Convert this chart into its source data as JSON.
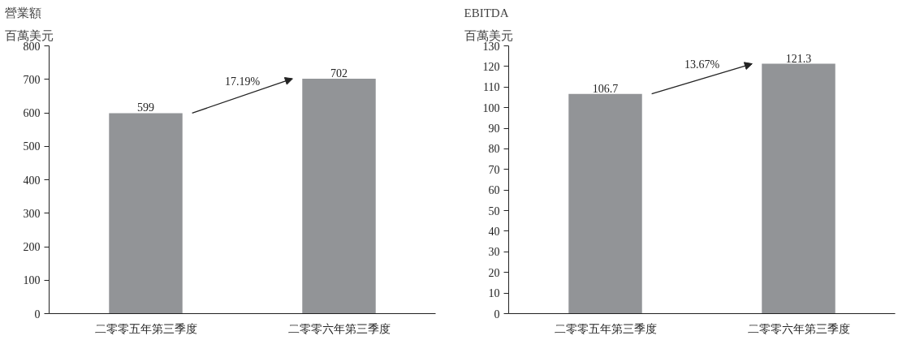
{
  "chart_data": [
    {
      "type": "bar",
      "title": "營業額",
      "ylabel": "百萬美元",
      "categories": [
        "二零零五年第三季度",
        "二零零六年第三季度"
      ],
      "values": [
        599,
        702
      ],
      "color": "#929497",
      "ylim": [
        0,
        800
      ],
      "yticks": [
        0,
        100,
        200,
        300,
        400,
        500,
        600,
        700,
        800
      ],
      "data_labels": true,
      "grid": false,
      "annotations": [
        "17.19%"
      ]
    },
    {
      "type": "bar",
      "title": "EBITDA",
      "ylabel": "百萬美元",
      "categories": [
        "二零零五年第三季度",
        "二零零六年第三季度"
      ],
      "values": [
        106.7,
        121.3
      ],
      "color": "#929497",
      "ylim": [
        0,
        130
      ],
      "yticks": [
        0,
        10,
        20,
        30,
        40,
        50,
        60,
        70,
        80,
        90,
        100,
        110,
        120,
        130
      ],
      "data_labels": true,
      "grid": false,
      "annotations": [
        "13.67%"
      ]
    }
  ]
}
